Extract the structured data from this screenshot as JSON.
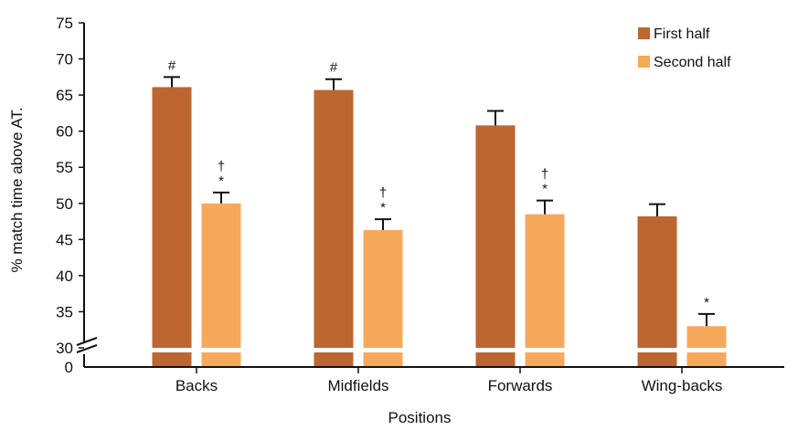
{
  "chart_data": {
    "type": "bar",
    "title": "",
    "xlabel": "Positions",
    "ylabel": "% match time above AT.",
    "categories": [
      "Backs",
      "Midfields",
      "Forwards",
      "Wing-backs"
    ],
    "series": [
      {
        "name": "First half",
        "color": "#BC6630",
        "values": [
          66.1,
          65.7,
          60.8,
          48.2
        ],
        "errors": [
          1.4,
          1.5,
          2.0,
          1.7
        ],
        "marks": [
          "#",
          "#",
          "",
          ""
        ]
      },
      {
        "name": "Second half",
        "color": "#F7A95B",
        "values": [
          50.0,
          46.3,
          48.5,
          33.0
        ],
        "errors": [
          1.5,
          1.5,
          1.9,
          1.7
        ],
        "marks": [
          "†\n*",
          "†\n*",
          "†\n*",
          "*"
        ]
      }
    ],
    "yticks": [
      "0",
      "30",
      "35",
      "40",
      "45",
      "50",
      "55",
      "60",
      "65",
      "70",
      "75"
    ],
    "ylim": [
      30,
      75
    ],
    "axis_break": true,
    "grid": false,
    "legend_position": "top-right"
  }
}
